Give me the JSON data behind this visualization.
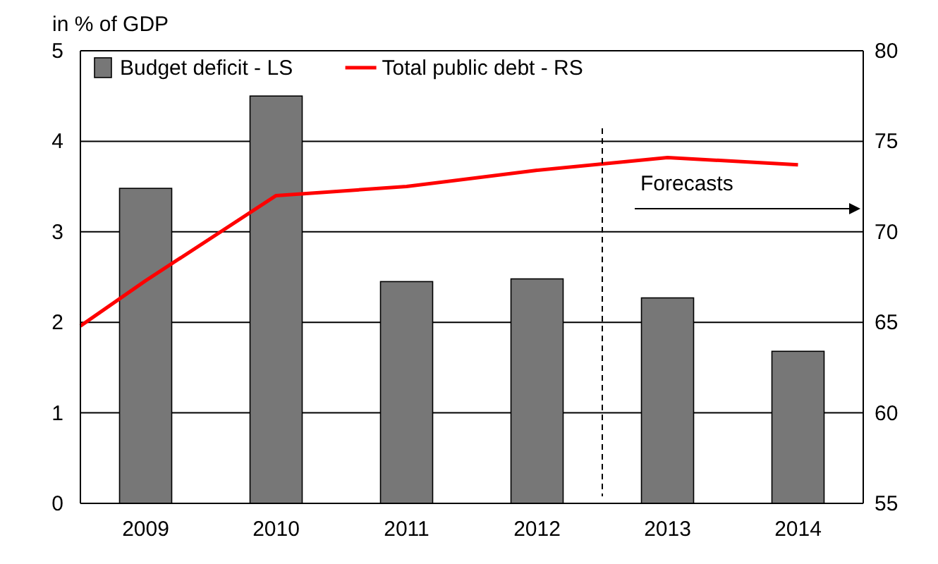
{
  "chart_data": {
    "type": "bar",
    "ylabel": "in % of GDP",
    "x": [
      2009,
      2010,
      2011,
      2012,
      2013,
      2014
    ],
    "xlim": [
      2008.5,
      2014.5
    ],
    "xticks": [
      2009,
      2010,
      2011,
      2012,
      2013,
      2014
    ],
    "ylim": [
      0,
      5
    ],
    "yticks": [
      0,
      1,
      2,
      3,
      4,
      5
    ],
    "y2lim": [
      55,
      80
    ],
    "y2ticks": [
      55,
      60,
      65,
      70,
      75,
      80
    ],
    "grid": "y",
    "legend": "top left",
    "series": [
      {
        "name": "Budget deficit - LS",
        "color": "#777777",
        "values": [
          3.48,
          4.5,
          2.45,
          2.48,
          2.27,
          1.68
        ]
      },
      {
        "name": "Total public debt - RS",
        "type": "line",
        "axis": "y2",
        "color": "#ff0000",
        "x": [
          2008.5,
          2009,
          2010,
          2011,
          2012,
          2013,
          2014
        ],
        "values": [
          64.8,
          67.3,
          72.0,
          72.5,
          73.4,
          74.1,
          73.7
        ]
      }
    ],
    "ref_lines": [
      {
        "axis": "x",
        "value": 2012.5,
        "line_style": "dashed",
        "color": "#000000"
      }
    ],
    "annotations": [
      "Forecasts"
    ]
  }
}
